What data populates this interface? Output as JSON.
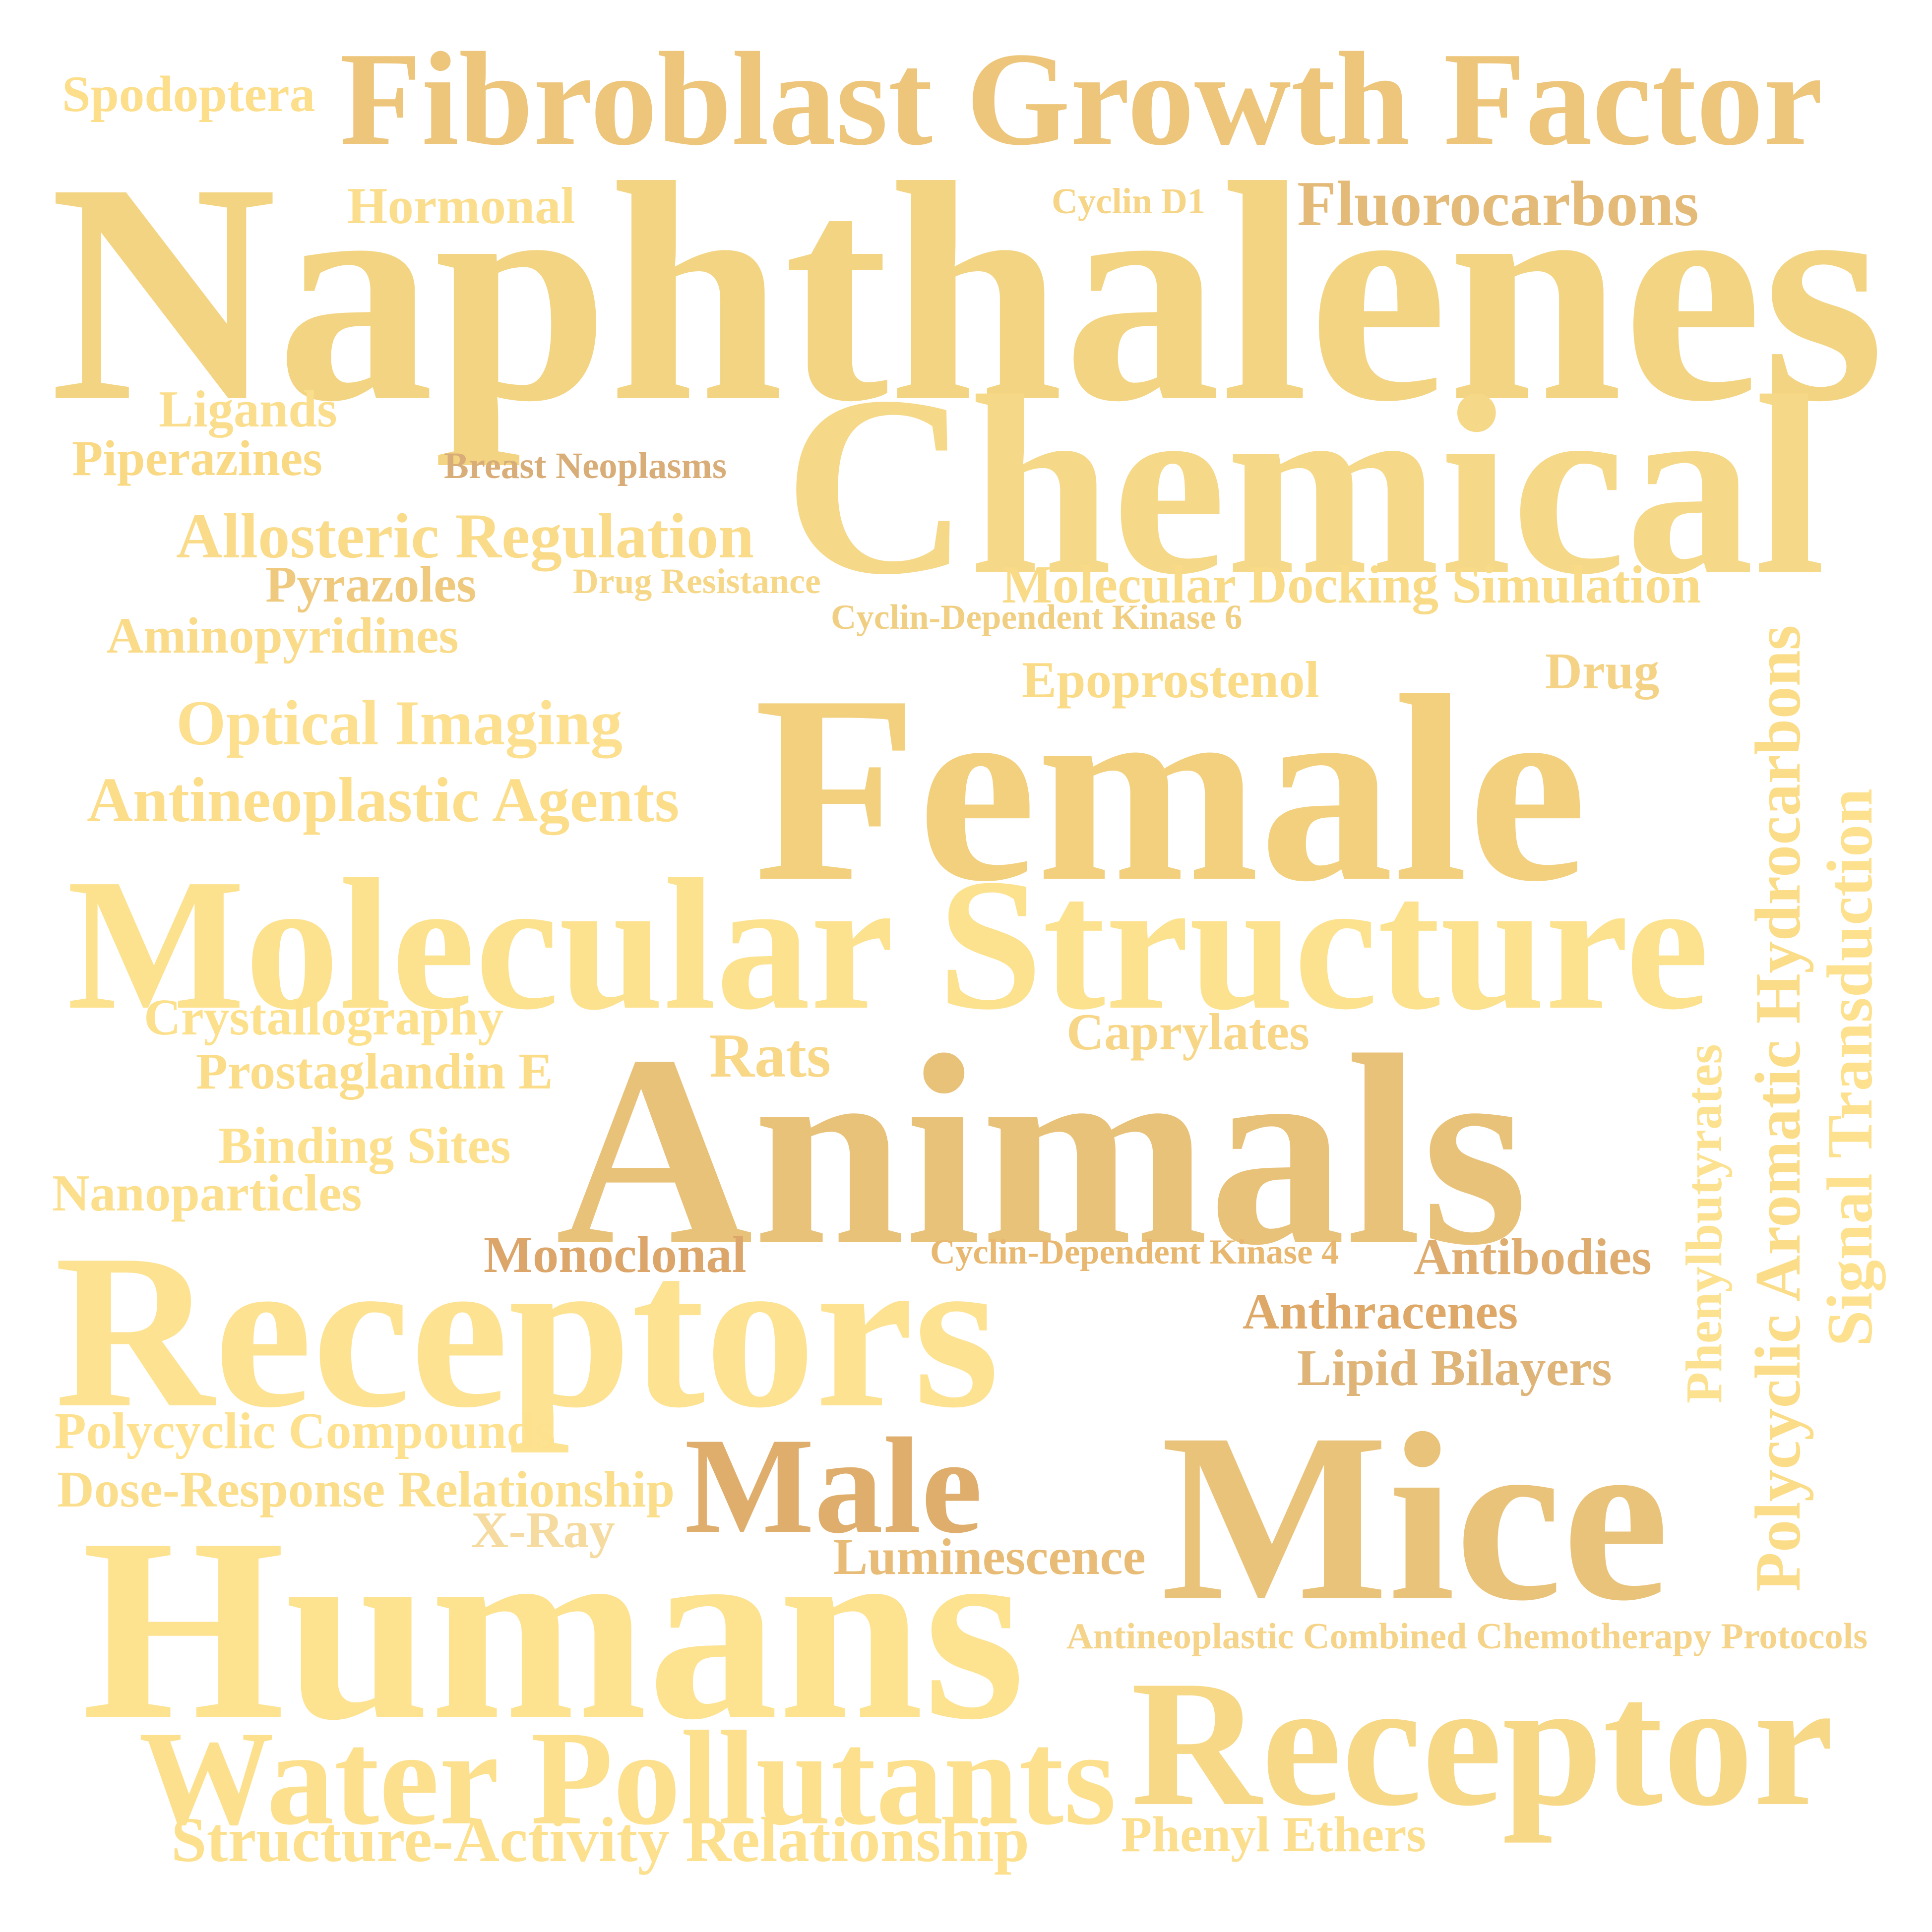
{
  "words": [
    {
      "text": "Naphthalenes",
      "color": "#F3D482"
    },
    {
      "text": "Chemical",
      "color": "#F5D888"
    },
    {
      "text": "Molecular Structure",
      "color": "#FCE28E"
    },
    {
      "text": "Receptors",
      "color": "#FDE291"
    },
    {
      "text": "Humans",
      "color": "#FDE290"
    },
    {
      "text": "Female",
      "color": "#F2D07E"
    },
    {
      "text": "Animals",
      "color": "#E9C27A"
    },
    {
      "text": "Mice",
      "color": "#EAC37A"
    },
    {
      "text": "Receptor",
      "color": "#F6D887"
    },
    {
      "text": "Fibroblast Growth Factor",
      "color": "#EDC67C"
    },
    {
      "text": "Water Pollutants",
      "color": "#FCE08E"
    },
    {
      "text": "Male",
      "color": "#DFAE6C"
    },
    {
      "text": "Spodoptera",
      "color": "#FCDE8B"
    },
    {
      "text": "Hormonal",
      "color": "#FBDE8D"
    },
    {
      "text": "Cyclin D1",
      "color": "#F6D586"
    },
    {
      "text": "Fluorocarbons",
      "color": "#E4BA78"
    },
    {
      "text": "Ligands",
      "color": "#FBDE8D"
    },
    {
      "text": "Piperazines",
      "color": "#FAD985"
    },
    {
      "text": "Breast Neoplasms",
      "color": "#D9AD78"
    },
    {
      "text": "Allosteric Regulation",
      "color": "#FADB89"
    },
    {
      "text": "Pyrazoles",
      "color": "#EFCA7E"
    },
    {
      "text": "Drug Resistance",
      "color": "#F6D788"
    },
    {
      "text": "Molecular Docking Simulation",
      "color": "#F8DA87"
    },
    {
      "text": "Cyclin-Dependent Kinase 6",
      "color": "#F0CF82"
    },
    {
      "text": "Aminopyridines",
      "color": "#FADB89"
    },
    {
      "text": "Epoprostenol",
      "color": "#FADB88"
    },
    {
      "text": "Drug",
      "color": "#F5D386"
    },
    {
      "text": "Optical Imaging",
      "color": "#FCE08F"
    },
    {
      "text": "Antineoplastic Agents",
      "color": "#FBDD8A"
    },
    {
      "text": "Polycyclic Aromatic Hydrocarbons",
      "color": "#FBDD89"
    },
    {
      "text": "Signal Transduction",
      "color": "#FDE18E"
    },
    {
      "text": "Phenylbutyrates",
      "color": "#FCE190"
    },
    {
      "text": "Crystallography",
      "color": "#FCE08C"
    },
    {
      "text": "Prostaglandin E",
      "color": "#FBDC89"
    },
    {
      "text": "Rats",
      "color": "#F8D787"
    },
    {
      "text": "Caprylates",
      "color": "#F7D687"
    },
    {
      "text": "Binding Sites",
      "color": "#FCE08D"
    },
    {
      "text": "Nanoparticles",
      "color": "#FCDF8C"
    },
    {
      "text": "Monoclonal",
      "color": "#DCA66B"
    },
    {
      "text": "Cyclin-Dependent Kinase 4",
      "color": "#E8B870"
    },
    {
      "text": "Antibodies",
      "color": "#DDAC6E"
    },
    {
      "text": "Anthracenes",
      "color": "#DEA869"
    },
    {
      "text": "Lipid Bilayers",
      "color": "#DFB478"
    },
    {
      "text": "Polycyclic Compounds",
      "color": "#FDE18F"
    },
    {
      "text": "Dose-Response Relationship",
      "color": "#FBDE8C"
    },
    {
      "text": "X-Ray",
      "color": "#F5DBA0"
    },
    {
      "text": "Luminescence",
      "color": "#E8BC76"
    },
    {
      "text": "Antineoplastic Combined Chemotherapy Protocols",
      "color": "#F5D388"
    },
    {
      "text": "Structure-Activity Relationship",
      "color": "#FCE08D"
    },
    {
      "text": "Phenyl Ethers",
      "color": "#FBDF8E"
    }
  ]
}
